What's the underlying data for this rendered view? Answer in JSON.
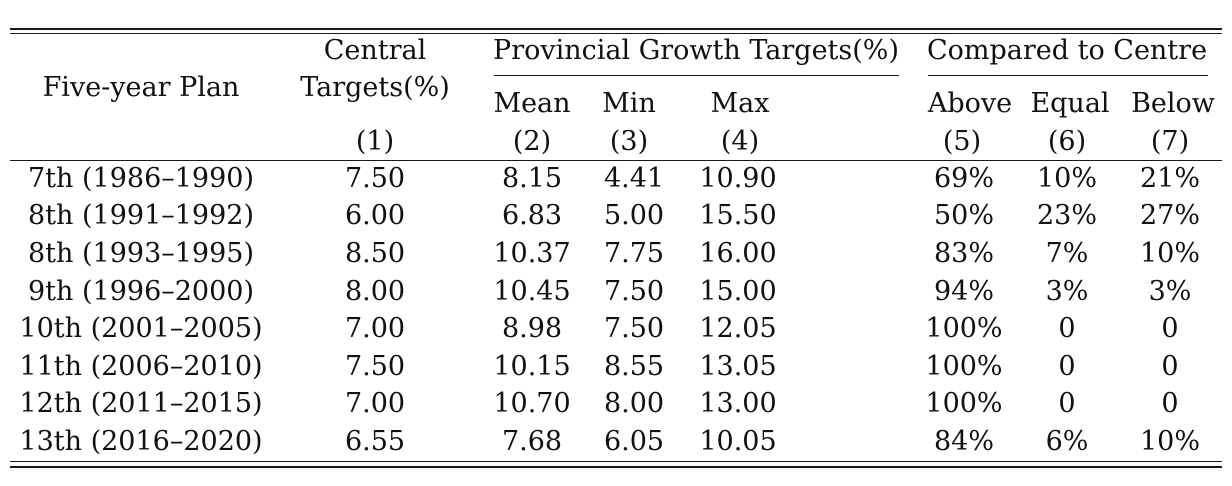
{
  "header": {
    "plan": "Five-year Plan",
    "central_line1": "Central",
    "central_line2": "Targets(%)",
    "provincial": "Provincial Growth Targets(%)",
    "compared": "Compared to Centre",
    "mean": "Mean",
    "min": "Min",
    "max": "Max",
    "above": "Above",
    "equal": "Equal",
    "below": "Below",
    "col1": "(1)",
    "col2": "(2)",
    "col3": "(3)",
    "col4": "(4)",
    "col5": "(5)",
    "col6": "(6)",
    "col7": "(7)"
  },
  "rows": [
    [
      "7th (1986–1990)",
      "7.50",
      "8.15",
      "4.41",
      "10.90",
      "69%",
      "10%",
      "21%"
    ],
    [
      "8th (1991–1992)",
      "6.00",
      "6.83",
      "5.00",
      "15.50",
      "50%",
      "23%",
      "27%"
    ],
    [
      "8th (1993–1995)",
      "8.50",
      "10.37",
      "7.75",
      "16.00",
      "83%",
      "7%",
      "10%"
    ],
    [
      "9th (1996–2000)",
      "8.00",
      "10.45",
      "7.50",
      "15.00",
      "94%",
      "3%",
      "3%"
    ],
    [
      "10th (2001–2005)",
      "7.00",
      "8.98",
      "7.50",
      "12.05",
      "100%",
      "0",
      "0"
    ],
    [
      "11th (2006–2010)",
      "7.50",
      "10.15",
      "8.55",
      "13.05",
      "100%",
      "0",
      "0"
    ],
    [
      "12th (2011–2015)",
      "7.00",
      "10.70",
      "8.00",
      "13.00",
      "100%",
      "0",
      "0"
    ],
    [
      "13th (2016–2020)",
      "6.55",
      "7.68",
      "6.05",
      "10.05",
      "84%",
      "6%",
      "10%"
    ]
  ]
}
